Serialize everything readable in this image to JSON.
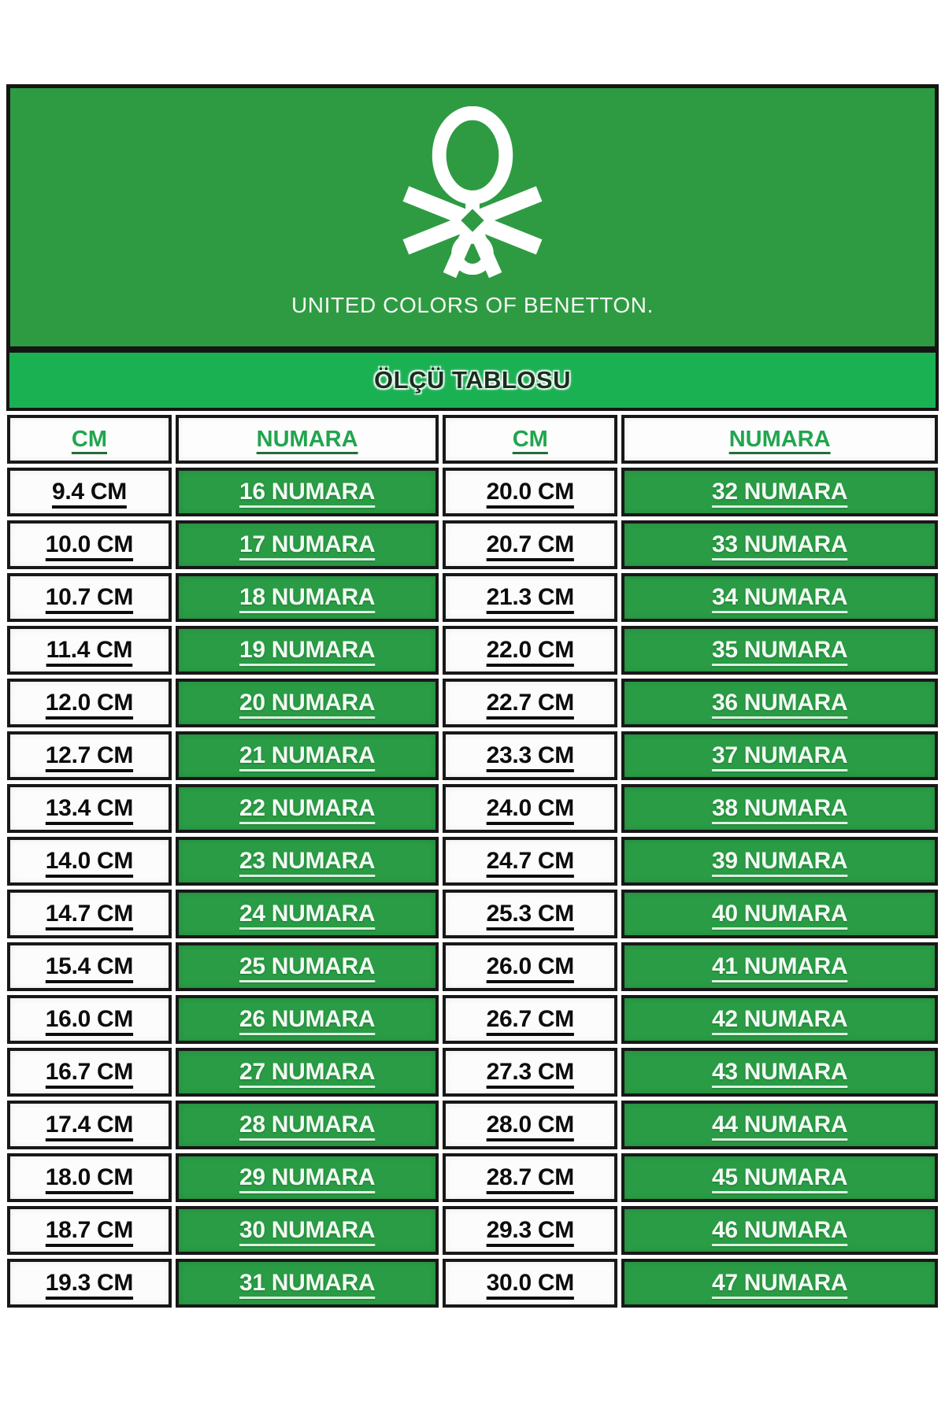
{
  "brand": {
    "logo_icon": "benetton-knot-icon",
    "caption": "UNITED COLORS OF BENETTON."
  },
  "banner": {
    "title": "ÖLÇÜ TABLOSU"
  },
  "table": {
    "headers": [
      "CM",
      "NUMARA",
      "CM",
      "NUMARA"
    ],
    "rows": [
      {
        "cm1": "9.4 CM",
        "num1": "16 NUMARA",
        "cm2": "20.0 CM",
        "num2": "32 NUMARA"
      },
      {
        "cm1": "10.0 CM",
        "num1": "17 NUMARA",
        "cm2": "20.7 CM",
        "num2": "33 NUMARA"
      },
      {
        "cm1": "10.7 CM",
        "num1": "18 NUMARA",
        "cm2": "21.3 CM",
        "num2": "34 NUMARA"
      },
      {
        "cm1": "11.4 CM",
        "num1": "19 NUMARA",
        "cm2": "22.0 CM",
        "num2": "35 NUMARA"
      },
      {
        "cm1": "12.0 CM",
        "num1": "20 NUMARA",
        "cm2": "22.7 CM",
        "num2": "36 NUMARA"
      },
      {
        "cm1": "12.7 CM",
        "num1": "21 NUMARA",
        "cm2": "23.3 CM",
        "num2": "37 NUMARA"
      },
      {
        "cm1": "13.4 CM",
        "num1": "22 NUMARA",
        "cm2": "24.0 CM",
        "num2": "38 NUMARA"
      },
      {
        "cm1": "14.0 CM",
        "num1": "23 NUMARA",
        "cm2": "24.7 CM",
        "num2": "39 NUMARA"
      },
      {
        "cm1": "14.7 CM",
        "num1": "24 NUMARA",
        "cm2": "25.3 CM",
        "num2": "40 NUMARA"
      },
      {
        "cm1": "15.4 CM",
        "num1": "25 NUMARA",
        "cm2": "26.0 CM",
        "num2": "41 NUMARA"
      },
      {
        "cm1": "16.0 CM",
        "num1": "26 NUMARA",
        "cm2": "26.7 CM",
        "num2": "42 NUMARA"
      },
      {
        "cm1": "16.7 CM",
        "num1": "27 NUMARA",
        "cm2": "27.3 CM",
        "num2": "43 NUMARA"
      },
      {
        "cm1": "17.4 CM",
        "num1": "28 NUMARA",
        "cm2": "28.0 CM",
        "num2": "44 NUMARA"
      },
      {
        "cm1": "18.0 CM",
        "num1": "29 NUMARA",
        "cm2": "28.7 CM",
        "num2": "45 NUMARA"
      },
      {
        "cm1": "18.7 CM",
        "num1": "30 NUMARA",
        "cm2": "29.3 CM",
        "num2": "46 NUMARA"
      },
      {
        "cm1": "19.3 CM",
        "num1": "31 NUMARA",
        "cm2": "30.0 CM",
        "num2": "47 NUMARA"
      }
    ]
  },
  "colors": {
    "header_green": "#2e9b42",
    "banner_green": "#1ab153",
    "cell_green": "#2a9c45",
    "header_text_green": "#21a54e",
    "border_black": "#151515",
    "cm_text": "#0c0c0c",
    "numara_text": "#f2fbf3"
  }
}
